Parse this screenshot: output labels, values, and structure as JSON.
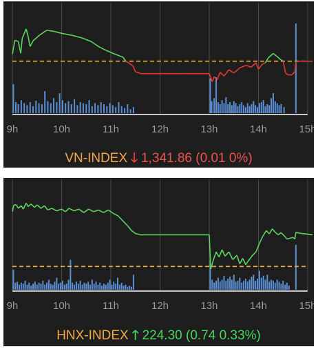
{
  "chart_data": [
    {
      "type": "line",
      "index_name": "VN-INDEX",
      "direction": "down",
      "direction_icon": "arrow-down",
      "value_text": "1,341.86",
      "change_text": "(0.01 0%)",
      "x_ticks": [
        "9h",
        "10h",
        "11h",
        "12h",
        "13h",
        "14h",
        "15h"
      ],
      "reference": 1341.87,
      "ylim": [
        1333.5,
        1350.5
      ],
      "price_series": [
        [
          9.0,
          1343.0
        ],
        [
          9.05,
          1345.2
        ],
        [
          9.12,
          1345.0
        ],
        [
          9.17,
          1343.1
        ],
        [
          9.2,
          1345.5
        ],
        [
          9.28,
          1347.0
        ],
        [
          9.32,
          1345.8
        ],
        [
          9.36,
          1344.2
        ],
        [
          9.42,
          1345.1
        ],
        [
          9.55,
          1346.0
        ],
        [
          9.7,
          1346.8
        ],
        [
          9.85,
          1346.6
        ],
        [
          10.0,
          1346.3
        ],
        [
          10.2,
          1346.0
        ],
        [
          10.4,
          1345.6
        ],
        [
          10.6,
          1345.0
        ],
        [
          10.75,
          1344.2
        ],
        [
          10.9,
          1343.6
        ],
        [
          11.05,
          1343.1
        ],
        [
          11.15,
          1342.8
        ],
        [
          11.25,
          1342.5
        ],
        [
          11.3,
          1341.9
        ],
        [
          11.38,
          1341.5
        ],
        [
          11.45,
          1341.1
        ],
        [
          11.5,
          1340.2
        ],
        [
          11.6,
          1339.9
        ],
        [
          12.0,
          1339.9
        ],
        [
          12.5,
          1339.9
        ],
        [
          13.0,
          1339.9
        ],
        [
          13.06,
          1338.6
        ],
        [
          13.1,
          1339.4
        ],
        [
          13.16,
          1338.9
        ],
        [
          13.22,
          1340.1
        ],
        [
          13.3,
          1339.5
        ],
        [
          13.4,
          1340.5
        ],
        [
          13.5,
          1340.0
        ],
        [
          13.62,
          1340.8
        ],
        [
          13.75,
          1341.2
        ],
        [
          13.85,
          1340.9
        ],
        [
          13.95,
          1341.6
        ],
        [
          14.0,
          1340.6
        ],
        [
          14.08,
          1341.4
        ],
        [
          14.14,
          1341.6
        ],
        [
          14.2,
          1342.4
        ],
        [
          14.3,
          1343.1
        ],
        [
          14.38,
          1342.6
        ],
        [
          14.45,
          1342.1
        ],
        [
          14.5,
          1341.9
        ],
        [
          14.55,
          1340.0
        ],
        [
          14.6,
          1339.7
        ],
        [
          14.68,
          1339.7
        ],
        [
          14.74,
          1340.2
        ],
        [
          14.76,
          1341.9
        ],
        [
          14.8,
          1341.87
        ],
        [
          15.1,
          1341.86
        ]
      ],
      "volume_series": [
        [
          9.02,
          58
        ],
        [
          9.07,
          22
        ],
        [
          9.12,
          18
        ],
        [
          9.18,
          26
        ],
        [
          9.24,
          20
        ],
        [
          9.3,
          16
        ],
        [
          9.36,
          22
        ],
        [
          9.42,
          14
        ],
        [
          9.48,
          25
        ],
        [
          9.54,
          20
        ],
        [
          9.6,
          18
        ],
        [
          9.66,
          44
        ],
        [
          9.72,
          24
        ],
        [
          9.78,
          20
        ],
        [
          9.84,
          30
        ],
        [
          9.9,
          22
        ],
        [
          9.96,
          40
        ],
        [
          10.02,
          26
        ],
        [
          10.08,
          20
        ],
        [
          10.14,
          24
        ],
        [
          10.2,
          18
        ],
        [
          10.26,
          28
        ],
        [
          10.32,
          16
        ],
        [
          10.38,
          22
        ],
        [
          10.44,
          20
        ],
        [
          10.5,
          18
        ],
        [
          10.56,
          26
        ],
        [
          10.62,
          14
        ],
        [
          10.68,
          20
        ],
        [
          10.74,
          16
        ],
        [
          10.8,
          22
        ],
        [
          10.86,
          18
        ],
        [
          10.92,
          14
        ],
        [
          10.98,
          20
        ],
        [
          11.04,
          16
        ],
        [
          11.1,
          12
        ],
        [
          11.16,
          22
        ],
        [
          11.22,
          14
        ],
        [
          11.28,
          10
        ],
        [
          11.34,
          18
        ],
        [
          11.4,
          8
        ],
        [
          11.46,
          12
        ],
        [
          13.02,
          70
        ],
        [
          13.05,
          24
        ],
        [
          13.1,
          30
        ],
        [
          13.14,
          72
        ],
        [
          13.18,
          22
        ],
        [
          13.22,
          18
        ],
        [
          13.26,
          26
        ],
        [
          13.3,
          20
        ],
        [
          13.34,
          32
        ],
        [
          13.38,
          18
        ],
        [
          13.42,
          22
        ],
        [
          13.46,
          16
        ],
        [
          13.5,
          24
        ],
        [
          13.54,
          20
        ],
        [
          13.58,
          14
        ],
        [
          13.62,
          18
        ],
        [
          13.66,
          22
        ],
        [
          13.7,
          16
        ],
        [
          13.74,
          12
        ],
        [
          13.78,
          20
        ],
        [
          13.82,
          14
        ],
        [
          13.86,
          18
        ],
        [
          13.9,
          24
        ],
        [
          13.94,
          16
        ],
        [
          13.98,
          12
        ],
        [
          14.02,
          20
        ],
        [
          14.06,
          22
        ],
        [
          14.1,
          26
        ],
        [
          14.14,
          14
        ],
        [
          14.18,
          18
        ],
        [
          14.22,
          16
        ],
        [
          14.26,
          30
        ],
        [
          14.3,
          40
        ],
        [
          14.34,
          24
        ],
        [
          14.38,
          20
        ],
        [
          14.42,
          16
        ],
        [
          14.46,
          18
        ],
        [
          14.52,
          12
        ],
        [
          14.76,
          180
        ]
      ],
      "colors": {
        "up": "#5bd75b",
        "down": "#e53935",
        "reference": "#f5b13d",
        "volume": "#5a8fd6",
        "grid": "#4a4a4a",
        "axis": "#ffffff",
        "tick_label": "#9a9a9a"
      }
    },
    {
      "type": "line",
      "index_name": "HNX-INDEX",
      "direction": "up",
      "direction_icon": "arrow-up",
      "value_text": "224.30",
      "change_text": "(0.74 0.33%)",
      "x_ticks": [
        "9h",
        "10h",
        "11h",
        "12h",
        "13h",
        "14h",
        "15h"
      ],
      "reference": 223.56,
      "ylim": [
        223.0,
        225.5
      ],
      "price_series": [
        [
          9.0,
          224.84
        ],
        [
          9.03,
          225.0
        ],
        [
          9.08,
          225.0
        ],
        [
          9.12,
          224.92
        ],
        [
          9.18,
          224.98
        ],
        [
          9.22,
          224.9
        ],
        [
          9.28,
          225.04
        ],
        [
          9.32,
          224.96
        ],
        [
          9.38,
          225.02
        ],
        [
          9.45,
          224.94
        ],
        [
          9.5,
          225.0
        ],
        [
          9.58,
          224.92
        ],
        [
          9.65,
          224.98
        ],
        [
          9.72,
          224.88
        ],
        [
          9.8,
          224.92
        ],
        [
          9.9,
          224.86
        ],
        [
          10.0,
          224.9
        ],
        [
          10.08,
          224.84
        ],
        [
          10.15,
          224.92
        ],
        [
          10.25,
          224.86
        ],
        [
          10.35,
          224.9
        ],
        [
          10.45,
          224.82
        ],
        [
          10.55,
          224.9
        ],
        [
          10.65,
          224.84
        ],
        [
          10.75,
          224.88
        ],
        [
          10.85,
          224.82
        ],
        [
          10.95,
          224.88
        ],
        [
          11.05,
          224.8
        ],
        [
          11.15,
          224.74
        ],
        [
          11.25,
          224.62
        ],
        [
          11.35,
          224.5
        ],
        [
          11.42,
          224.4
        ],
        [
          11.5,
          224.33
        ],
        [
          11.6,
          224.3
        ],
        [
          12.0,
          224.3
        ],
        [
          12.5,
          224.3
        ],
        [
          13.0,
          224.3
        ],
        [
          13.03,
          223.5
        ],
        [
          13.08,
          223.7
        ],
        [
          13.14,
          223.9
        ],
        [
          13.2,
          223.78
        ],
        [
          13.26,
          223.95
        ],
        [
          13.32,
          223.8
        ],
        [
          13.4,
          223.9
        ],
        [
          13.48,
          223.72
        ],
        [
          13.56,
          223.82
        ],
        [
          13.62,
          223.62
        ],
        [
          13.68,
          223.75
        ],
        [
          13.74,
          223.6
        ],
        [
          13.8,
          223.7
        ],
        [
          13.88,
          223.82
        ],
        [
          13.95,
          223.9
        ],
        [
          14.02,
          224.1
        ],
        [
          14.08,
          224.25
        ],
        [
          14.16,
          224.4
        ],
        [
          14.22,
          224.32
        ],
        [
          14.28,
          224.44
        ],
        [
          14.34,
          224.36
        ],
        [
          14.4,
          224.3
        ],
        [
          14.46,
          224.35
        ],
        [
          14.52,
          224.28
        ],
        [
          14.58,
          224.2
        ],
        [
          14.64,
          224.22
        ],
        [
          14.7,
          224.24
        ],
        [
          14.74,
          224.2
        ],
        [
          14.76,
          224.36
        ],
        [
          14.82,
          224.34
        ],
        [
          15.1,
          224.3
        ]
      ],
      "volume_series": [
        [
          9.02,
          40
        ],
        [
          9.06,
          14
        ],
        [
          9.1,
          16
        ],
        [
          9.14,
          10
        ],
        [
          9.18,
          14
        ],
        [
          9.22,
          12
        ],
        [
          9.26,
          18
        ],
        [
          9.3,
          10
        ],
        [
          9.34,
          14
        ],
        [
          9.38,
          8
        ],
        [
          9.42,
          12
        ],
        [
          9.46,
          16
        ],
        [
          9.5,
          10
        ],
        [
          9.54,
          14
        ],
        [
          9.58,
          12
        ],
        [
          9.62,
          18
        ],
        [
          9.66,
          10
        ],
        [
          9.7,
          14
        ],
        [
          9.74,
          20
        ],
        [
          9.78,
          12
        ],
        [
          9.82,
          10
        ],
        [
          9.86,
          16
        ],
        [
          9.9,
          24
        ],
        [
          9.94,
          12
        ],
        [
          9.98,
          14
        ],
        [
          10.02,
          18
        ],
        [
          10.06,
          10
        ],
        [
          10.1,
          12
        ],
        [
          10.14,
          20
        ],
        [
          10.18,
          60
        ],
        [
          10.22,
          14
        ],
        [
          10.26,
          10
        ],
        [
          10.3,
          16
        ],
        [
          10.34,
          12
        ],
        [
          10.38,
          18
        ],
        [
          10.42,
          10
        ],
        [
          10.46,
          14
        ],
        [
          10.5,
          12
        ],
        [
          10.54,
          16
        ],
        [
          10.58,
          10
        ],
        [
          10.62,
          20
        ],
        [
          10.66,
          12
        ],
        [
          10.7,
          16
        ],
        [
          10.74,
          10
        ],
        [
          10.78,
          14
        ],
        [
          10.82,
          8
        ],
        [
          10.86,
          12
        ],
        [
          10.9,
          10
        ],
        [
          10.94,
          14
        ],
        [
          10.98,
          20
        ],
        [
          11.02,
          10
        ],
        [
          11.06,
          16
        ],
        [
          11.1,
          12
        ],
        [
          11.14,
          24
        ],
        [
          11.18,
          10
        ],
        [
          11.22,
          14
        ],
        [
          11.26,
          8
        ],
        [
          11.3,
          10
        ],
        [
          11.34,
          6
        ],
        [
          11.38,
          8
        ],
        [
          11.42,
          6
        ],
        [
          11.46,
          30
        ],
        [
          13.02,
          60
        ],
        [
          13.06,
          20
        ],
        [
          13.1,
          14
        ],
        [
          13.14,
          18
        ],
        [
          13.18,
          24
        ],
        [
          13.22,
          16
        ],
        [
          13.26,
          20
        ],
        [
          13.3,
          28
        ],
        [
          13.34,
          18
        ],
        [
          13.38,
          22
        ],
        [
          13.42,
          26
        ],
        [
          13.46,
          20
        ],
        [
          13.5,
          30
        ],
        [
          13.54,
          16
        ],
        [
          13.58,
          18
        ],
        [
          13.62,
          24
        ],
        [
          13.66,
          14
        ],
        [
          13.7,
          18
        ],
        [
          13.74,
          22
        ],
        [
          13.78,
          16
        ],
        [
          13.82,
          20
        ],
        [
          13.86,
          26
        ],
        [
          13.9,
          30
        ],
        [
          13.94,
          18
        ],
        [
          13.98,
          22
        ],
        [
          14.02,
          38
        ],
        [
          14.06,
          24
        ],
        [
          14.1,
          28
        ],
        [
          14.14,
          20
        ],
        [
          14.18,
          30
        ],
        [
          14.22,
          16
        ],
        [
          14.26,
          20
        ],
        [
          14.3,
          18
        ],
        [
          14.34,
          14
        ],
        [
          14.38,
          20
        ],
        [
          14.42,
          16
        ],
        [
          14.46,
          12
        ],
        [
          14.5,
          18
        ],
        [
          14.54,
          10
        ],
        [
          14.58,
          14
        ],
        [
          14.62,
          8
        ],
        [
          14.76,
          90
        ]
      ],
      "colors": {
        "up": "#5bd75b",
        "down": "#e53935",
        "reference": "#f5b13d",
        "volume": "#5a8fd6",
        "grid": "#4a4a4a",
        "axis": "#ffffff",
        "tick_label": "#9a9a9a"
      }
    }
  ]
}
